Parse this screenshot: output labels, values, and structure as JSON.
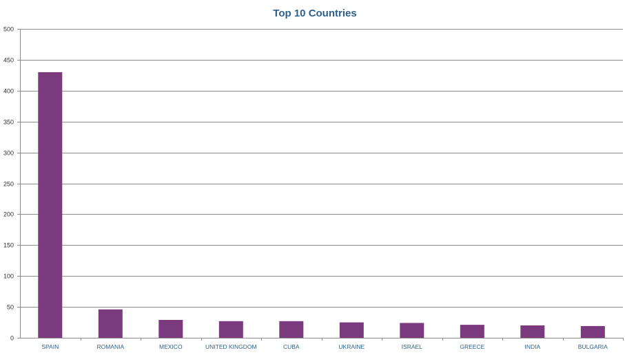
{
  "chart_data": {
    "type": "bar",
    "title": "Top 10 Countries",
    "xlabel": "",
    "ylabel": "",
    "categories": [
      "SPAIN",
      "ROMANIA",
      "MEXICO",
      "UNITED KINGDOM",
      "CUBA",
      "UKRAINE",
      "ISRAEL",
      "GREECE",
      "INDIA",
      "BULGARIA"
    ],
    "values": [
      430,
      46,
      29,
      27,
      27,
      25,
      24,
      21,
      20,
      19
    ],
    "ylim": [
      0,
      500
    ],
    "yticks": [
      0,
      50,
      100,
      150,
      200,
      250,
      300,
      350,
      400,
      450,
      500
    ],
    "grid": true,
    "legend": "none",
    "colors": {
      "bar": "#7b3a7e",
      "grid": "#8c8c8c",
      "title": "#2e5f8a",
      "category_label": "#2e5f8a"
    }
  }
}
